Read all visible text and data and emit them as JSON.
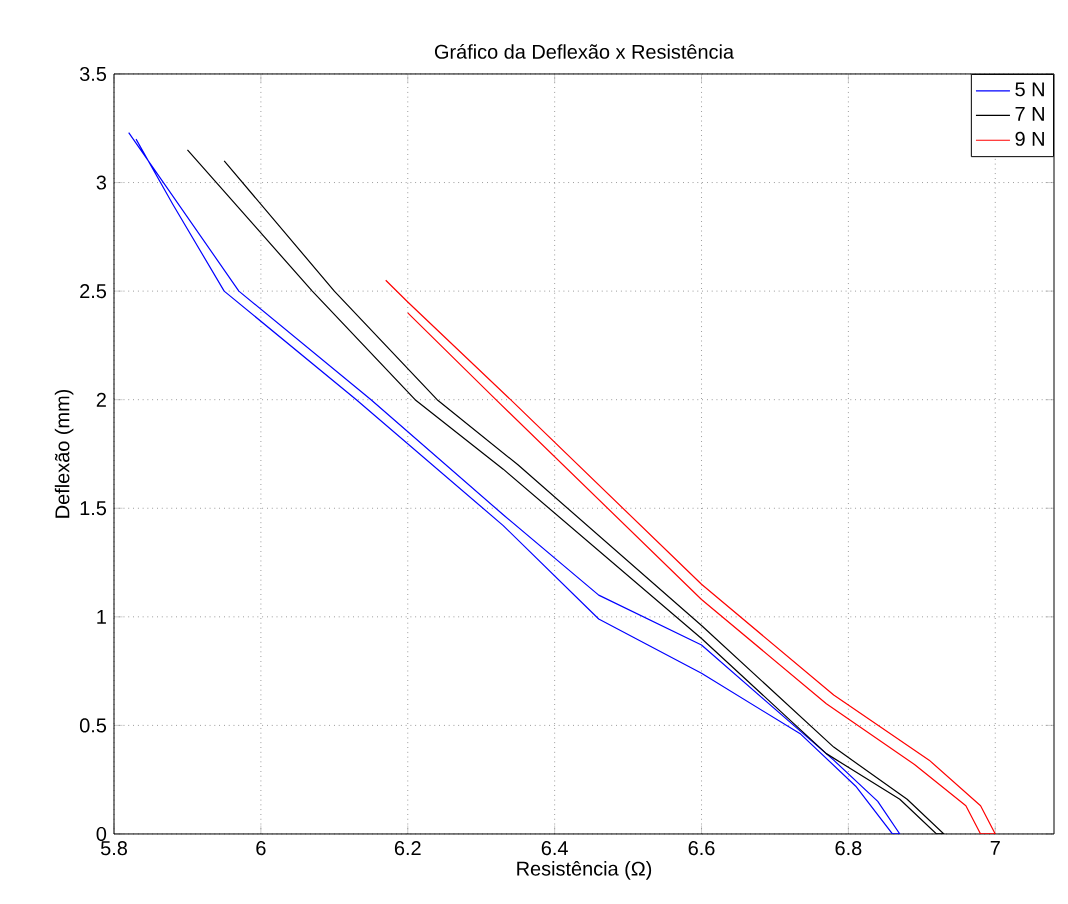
{
  "chart_data": {
    "type": "line",
    "title": "Gráfico da Deflexão x Resistência",
    "xlabel": "Resistência (Ω)",
    "ylabel": "Deflexão (mm)",
    "xlim": [
      5.8,
      7.08
    ],
    "ylim": [
      0,
      3.5
    ],
    "xticks": [
      5.8,
      6,
      6.2,
      6.4,
      6.6,
      6.8,
      7
    ],
    "yticks": [
      0,
      0.5,
      1,
      1.5,
      2,
      2.5,
      3,
      3.5
    ],
    "grid": true,
    "legend": "top right",
    "marker": "none",
    "line_style": "solid",
    "series": [
      {
        "name": "5 N",
        "color": "#0000ff",
        "x": [
          5.82,
          5.97,
          6.15,
          6.33,
          6.46,
          6.6,
          6.78,
          6.84,
          6.87,
          6.86,
          6.81,
          6.735,
          6.6,
          6.46,
          6.33,
          6.13,
          5.95,
          5.88,
          5.83
        ],
        "values": [
          3.23,
          2.5,
          2.0,
          1.47,
          1.1,
          0.87,
          0.34,
          0.15,
          0.0,
          0.0,
          0.22,
          0.46,
          0.74,
          0.99,
          1.42,
          2.0,
          2.5,
          2.9,
          3.2
        ]
      },
      {
        "name": "7 N",
        "color": "#000000",
        "x": [
          5.95,
          6.1,
          6.24,
          6.35,
          6.6,
          6.78,
          6.88,
          6.93,
          6.92,
          6.87,
          6.77,
          6.6,
          6.33,
          6.21,
          6.07,
          5.9
        ],
        "values": [
          3.1,
          2.5,
          2.0,
          1.7,
          0.96,
          0.4,
          0.16,
          0.0,
          0.0,
          0.16,
          0.37,
          0.9,
          1.68,
          2.0,
          2.5,
          3.15
        ]
      },
      {
        "name": "9 N",
        "color": "#ff0000",
        "x": [
          6.17,
          6.2,
          6.34,
          6.6,
          6.78,
          6.91,
          6.98,
          7.0,
          6.98,
          6.96,
          6.89,
          6.77,
          6.6,
          6.32,
          6.2
        ],
        "values": [
          2.55,
          2.45,
          2.0,
          1.15,
          0.64,
          0.34,
          0.13,
          0.0,
          0.0,
          0.13,
          0.32,
          0.6,
          1.08,
          2.0,
          2.4
        ]
      }
    ]
  }
}
